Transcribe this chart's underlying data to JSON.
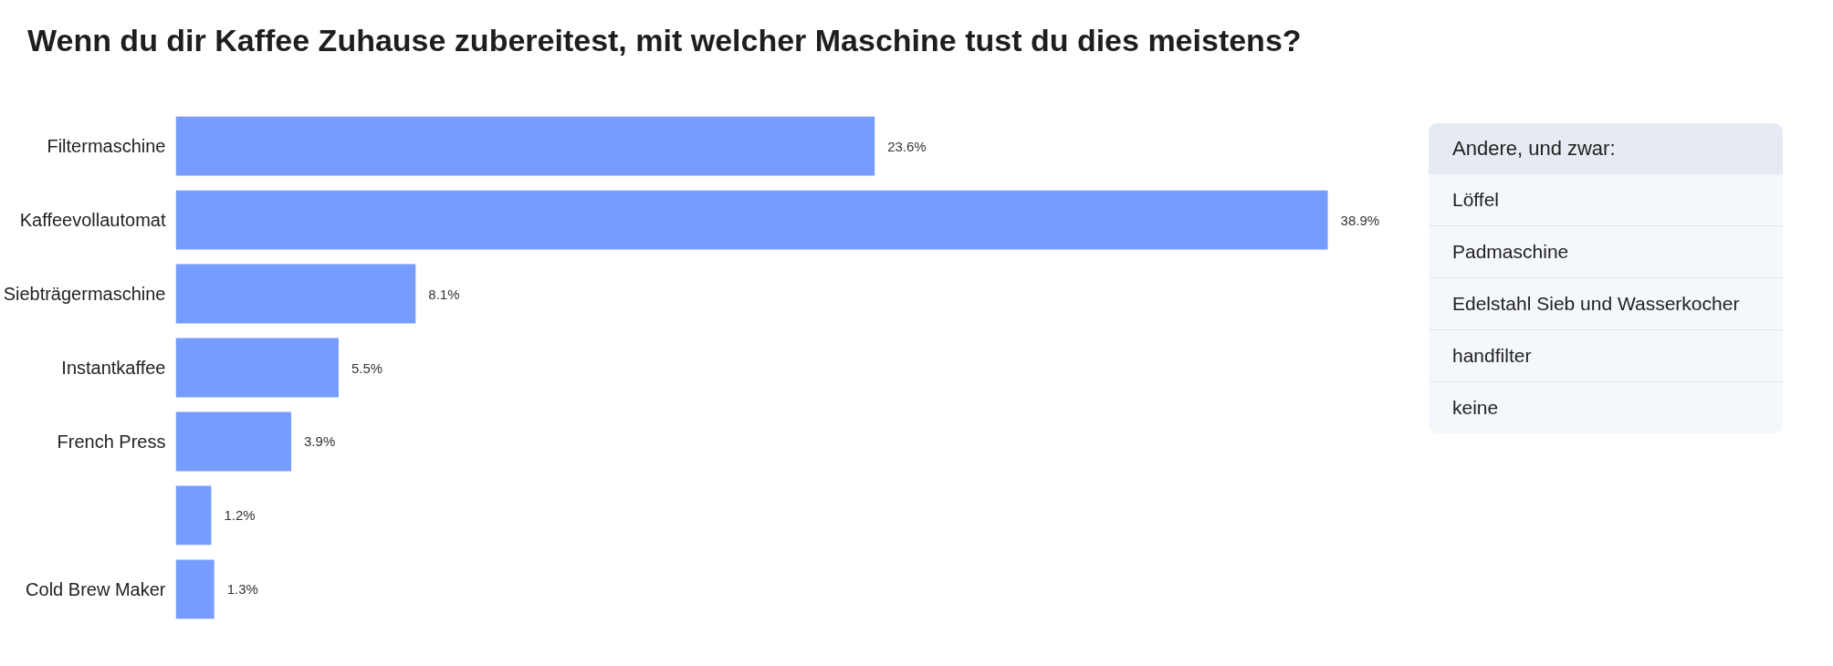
{
  "chart_data": [
    {
      "type": "bar",
      "title": "Wenn du dir Kaffee Zuhause zubereitest, mit welcher Maschine tust du dies meistens?",
      "orientation": "horizontal",
      "categories": [
        "Filtermaschine",
        "Kaffeevollautomat",
        "Siebträgermaschine",
        "Instantkaffee",
        "French Press",
        null,
        "Cold Brew Maker"
      ],
      "values": [
        23.6,
        38.9,
        8.1,
        5.5,
        3.9,
        1.2,
        1.3
      ],
      "value_labels": [
        "23.6%",
        "38.9%",
        "8.1%",
        "5.5%",
        "3.9%",
        "1.2%",
        "1.3%"
      ],
      "color": "#779cff",
      "tick_labels": "y",
      "grid": false
    },
    {
      "type": "other",
      "title": "Andere, und zwar:",
      "annotations": [
        "Löffel",
        "Padmaschine",
        "Edelstahl Sieb und Wasserkocher",
        "handfilter",
        "keine"
      ]
    }
  ]
}
